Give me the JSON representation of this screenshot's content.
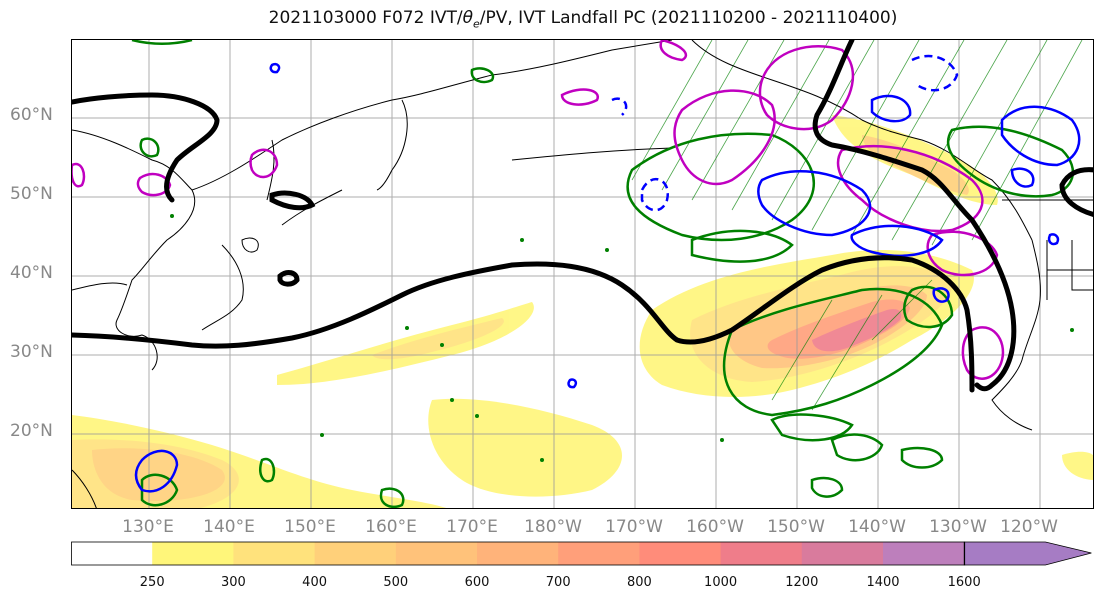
{
  "title_prefix": "2021103000 F072 IVT/",
  "title_theta": "θ",
  "title_theta_sub": "e",
  "title_suffix": "/PV, IVT Landfall PC (2021110200 - 2021110400)",
  "lat_labels": [
    "60°N",
    "50°N",
    "40°N",
    "30°N",
    "20°N"
  ],
  "lon_labels": [
    "130°E",
    "140°E",
    "150°E",
    "160°E",
    "170°E",
    "180°W",
    "170°W",
    "160°W",
    "150°W",
    "140°W",
    "130°W",
    "120°W"
  ],
  "colorbar": {
    "ticks": [
      "250",
      "300",
      "400",
      "500",
      "600",
      "700",
      "800",
      "1000",
      "1200",
      "1400",
      "1600"
    ],
    "colors": [
      "#ffffff",
      "#fff67a",
      "#ffe27c",
      "#ffd07a",
      "#ffc27a",
      "#ffb37a",
      "#ff9f7a",
      "#ff8c7a",
      "#ef7d8a",
      "#d97b9d",
      "#bd7fbc",
      "#a67cc4"
    ]
  },
  "colors": {
    "jet": "#000000",
    "theta_e": "#008000",
    "pv_positive": "#c000c0",
    "pv_negative": "#0000ff",
    "coast": "#000000",
    "grid": "#999999"
  }
}
